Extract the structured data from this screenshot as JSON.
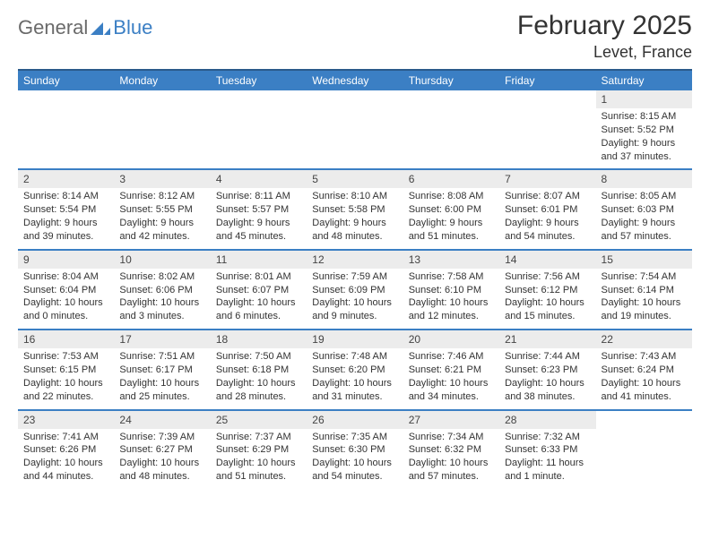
{
  "logo": {
    "general": "General",
    "blue": "Blue"
  },
  "title": "February 2025",
  "location": "Levet, France",
  "colors": {
    "header_bg": "#3b7fc4",
    "header_border": "#2a5a8a",
    "daynum_bg": "#ececec",
    "text": "#333333",
    "logo_gray": "#6a6a6a",
    "logo_blue": "#3b7fc4"
  },
  "day_names": [
    "Sunday",
    "Monday",
    "Tuesday",
    "Wednesday",
    "Thursday",
    "Friday",
    "Saturday"
  ],
  "weeks": [
    [
      null,
      null,
      null,
      null,
      null,
      null,
      {
        "n": "1",
        "sr": "Sunrise: 8:15 AM",
        "ss": "Sunset: 5:52 PM",
        "d1": "Daylight: 9 hours",
        "d2": "and 37 minutes."
      }
    ],
    [
      {
        "n": "2",
        "sr": "Sunrise: 8:14 AM",
        "ss": "Sunset: 5:54 PM",
        "d1": "Daylight: 9 hours",
        "d2": "and 39 minutes."
      },
      {
        "n": "3",
        "sr": "Sunrise: 8:12 AM",
        "ss": "Sunset: 5:55 PM",
        "d1": "Daylight: 9 hours",
        "d2": "and 42 minutes."
      },
      {
        "n": "4",
        "sr": "Sunrise: 8:11 AM",
        "ss": "Sunset: 5:57 PM",
        "d1": "Daylight: 9 hours",
        "d2": "and 45 minutes."
      },
      {
        "n": "5",
        "sr": "Sunrise: 8:10 AM",
        "ss": "Sunset: 5:58 PM",
        "d1": "Daylight: 9 hours",
        "d2": "and 48 minutes."
      },
      {
        "n": "6",
        "sr": "Sunrise: 8:08 AM",
        "ss": "Sunset: 6:00 PM",
        "d1": "Daylight: 9 hours",
        "d2": "and 51 minutes."
      },
      {
        "n": "7",
        "sr": "Sunrise: 8:07 AM",
        "ss": "Sunset: 6:01 PM",
        "d1": "Daylight: 9 hours",
        "d2": "and 54 minutes."
      },
      {
        "n": "8",
        "sr": "Sunrise: 8:05 AM",
        "ss": "Sunset: 6:03 PM",
        "d1": "Daylight: 9 hours",
        "d2": "and 57 minutes."
      }
    ],
    [
      {
        "n": "9",
        "sr": "Sunrise: 8:04 AM",
        "ss": "Sunset: 6:04 PM",
        "d1": "Daylight: 10 hours",
        "d2": "and 0 minutes."
      },
      {
        "n": "10",
        "sr": "Sunrise: 8:02 AM",
        "ss": "Sunset: 6:06 PM",
        "d1": "Daylight: 10 hours",
        "d2": "and 3 minutes."
      },
      {
        "n": "11",
        "sr": "Sunrise: 8:01 AM",
        "ss": "Sunset: 6:07 PM",
        "d1": "Daylight: 10 hours",
        "d2": "and 6 minutes."
      },
      {
        "n": "12",
        "sr": "Sunrise: 7:59 AM",
        "ss": "Sunset: 6:09 PM",
        "d1": "Daylight: 10 hours",
        "d2": "and 9 minutes."
      },
      {
        "n": "13",
        "sr": "Sunrise: 7:58 AM",
        "ss": "Sunset: 6:10 PM",
        "d1": "Daylight: 10 hours",
        "d2": "and 12 minutes."
      },
      {
        "n": "14",
        "sr": "Sunrise: 7:56 AM",
        "ss": "Sunset: 6:12 PM",
        "d1": "Daylight: 10 hours",
        "d2": "and 15 minutes."
      },
      {
        "n": "15",
        "sr": "Sunrise: 7:54 AM",
        "ss": "Sunset: 6:14 PM",
        "d1": "Daylight: 10 hours",
        "d2": "and 19 minutes."
      }
    ],
    [
      {
        "n": "16",
        "sr": "Sunrise: 7:53 AM",
        "ss": "Sunset: 6:15 PM",
        "d1": "Daylight: 10 hours",
        "d2": "and 22 minutes."
      },
      {
        "n": "17",
        "sr": "Sunrise: 7:51 AM",
        "ss": "Sunset: 6:17 PM",
        "d1": "Daylight: 10 hours",
        "d2": "and 25 minutes."
      },
      {
        "n": "18",
        "sr": "Sunrise: 7:50 AM",
        "ss": "Sunset: 6:18 PM",
        "d1": "Daylight: 10 hours",
        "d2": "and 28 minutes."
      },
      {
        "n": "19",
        "sr": "Sunrise: 7:48 AM",
        "ss": "Sunset: 6:20 PM",
        "d1": "Daylight: 10 hours",
        "d2": "and 31 minutes."
      },
      {
        "n": "20",
        "sr": "Sunrise: 7:46 AM",
        "ss": "Sunset: 6:21 PM",
        "d1": "Daylight: 10 hours",
        "d2": "and 34 minutes."
      },
      {
        "n": "21",
        "sr": "Sunrise: 7:44 AM",
        "ss": "Sunset: 6:23 PM",
        "d1": "Daylight: 10 hours",
        "d2": "and 38 minutes."
      },
      {
        "n": "22",
        "sr": "Sunrise: 7:43 AM",
        "ss": "Sunset: 6:24 PM",
        "d1": "Daylight: 10 hours",
        "d2": "and 41 minutes."
      }
    ],
    [
      {
        "n": "23",
        "sr": "Sunrise: 7:41 AM",
        "ss": "Sunset: 6:26 PM",
        "d1": "Daylight: 10 hours",
        "d2": "and 44 minutes."
      },
      {
        "n": "24",
        "sr": "Sunrise: 7:39 AM",
        "ss": "Sunset: 6:27 PM",
        "d1": "Daylight: 10 hours",
        "d2": "and 48 minutes."
      },
      {
        "n": "25",
        "sr": "Sunrise: 7:37 AM",
        "ss": "Sunset: 6:29 PM",
        "d1": "Daylight: 10 hours",
        "d2": "and 51 minutes."
      },
      {
        "n": "26",
        "sr": "Sunrise: 7:35 AM",
        "ss": "Sunset: 6:30 PM",
        "d1": "Daylight: 10 hours",
        "d2": "and 54 minutes."
      },
      {
        "n": "27",
        "sr": "Sunrise: 7:34 AM",
        "ss": "Sunset: 6:32 PM",
        "d1": "Daylight: 10 hours",
        "d2": "and 57 minutes."
      },
      {
        "n": "28",
        "sr": "Sunrise: 7:32 AM",
        "ss": "Sunset: 6:33 PM",
        "d1": "Daylight: 11 hours",
        "d2": "and 1 minute."
      },
      null
    ]
  ]
}
